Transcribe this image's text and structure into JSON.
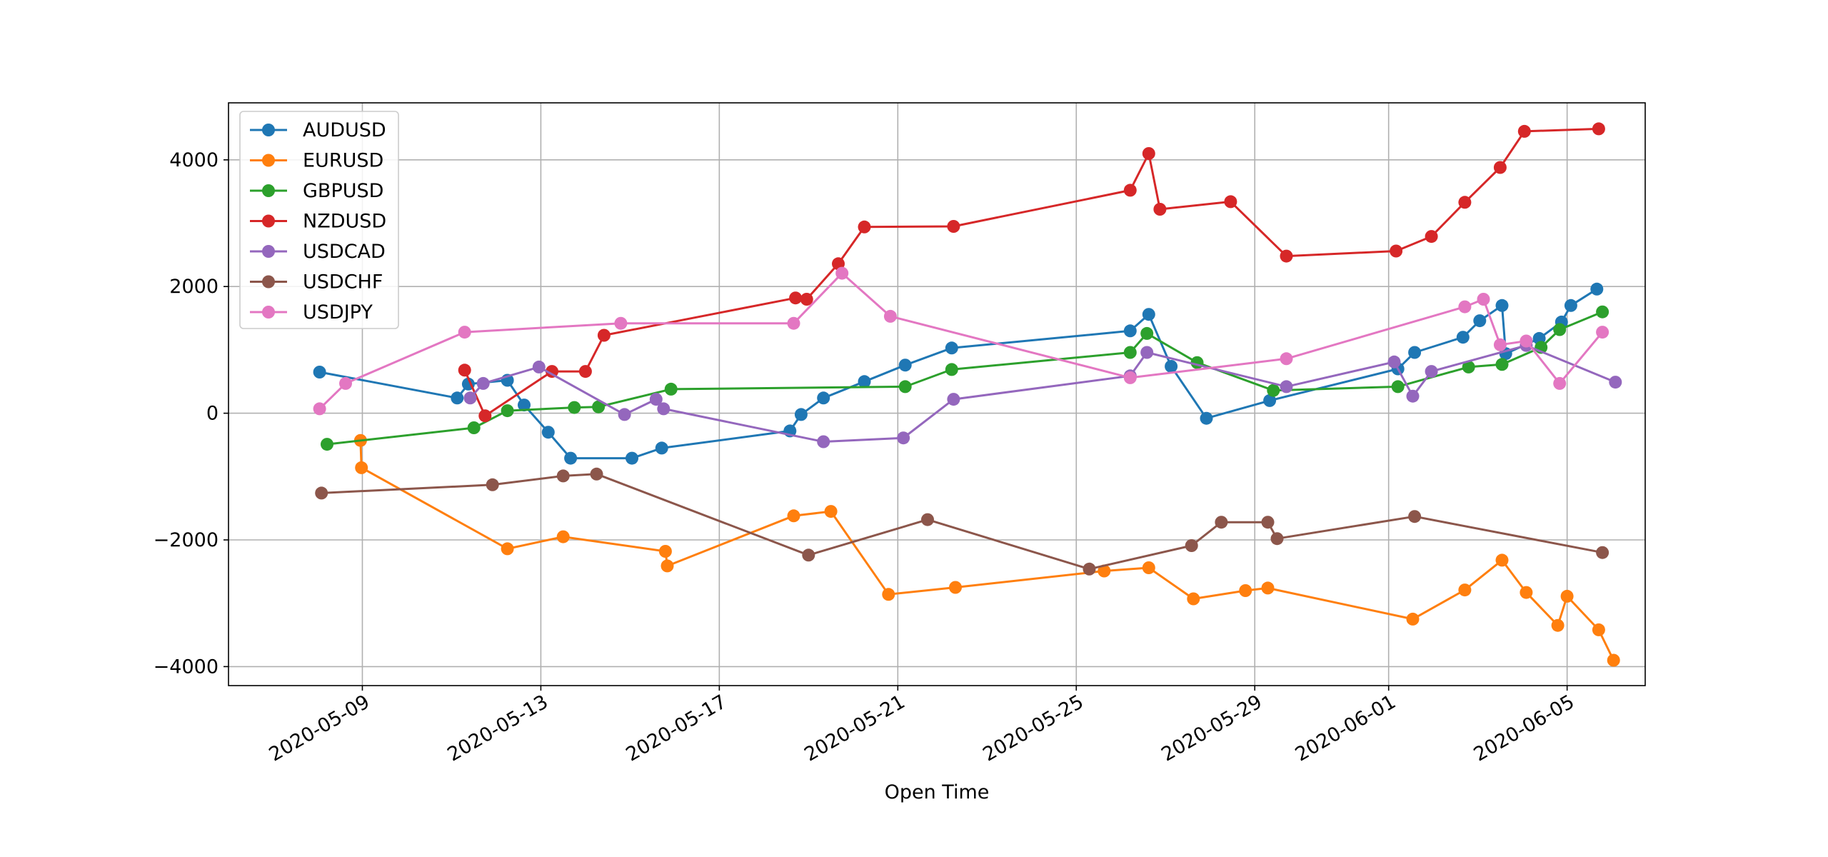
{
  "chart_data": {
    "type": "line",
    "title": "",
    "xlabel": "Open Time",
    "ylabel": "",
    "x_type": "datetime",
    "xlim": [
      "2020-05-06T00:00",
      "2020-06-06T18:00"
    ],
    "ylim": [
      -4300,
      4900
    ],
    "grid": true,
    "legend_position": "upper-left",
    "x_ticks": [
      {
        "date": "2020-05-09",
        "label": "2020-05-09"
      },
      {
        "date": "2020-05-13",
        "label": "2020-05-13"
      },
      {
        "date": "2020-05-17",
        "label": "2020-05-17"
      },
      {
        "date": "2020-05-21",
        "label": "2020-05-21"
      },
      {
        "date": "2020-05-25",
        "label": "2020-05-25"
      },
      {
        "date": "2020-05-29",
        "label": "2020-05-29"
      },
      {
        "date": "2020-06-01",
        "label": "2020-06-01"
      },
      {
        "date": "2020-06-05",
        "label": "2020-06-05"
      }
    ],
    "y_ticks": [
      {
        "value": 4000,
        "label": "4000"
      },
      {
        "value": 2000,
        "label": "2000"
      },
      {
        "value": 0,
        "label": "0"
      },
      {
        "value": -2000,
        "label": "−2000"
      },
      {
        "value": -4000,
        "label": "−4000"
      }
    ],
    "series": [
      {
        "name": "AUDUSD",
        "color": "#1f77b4",
        "points": [
          [
            "2020-05-08T01:00",
            650
          ],
          [
            "2020-05-11T03:00",
            240
          ],
          [
            "2020-05-11T09:00",
            460
          ],
          [
            "2020-05-12T06:00",
            520
          ],
          [
            "2020-05-12T15:00",
            130
          ],
          [
            "2020-05-13T04:00",
            -300
          ],
          [
            "2020-05-13T16:00",
            -710
          ],
          [
            "2020-05-15T01:00",
            -710
          ],
          [
            "2020-05-15T17:00",
            -550
          ],
          [
            "2020-05-18T14:00",
            -280
          ],
          [
            "2020-05-18T20:00",
            -20
          ],
          [
            "2020-05-19T08:00",
            240
          ],
          [
            "2020-05-20T06:00",
            500
          ],
          [
            "2020-05-21T04:00",
            760
          ],
          [
            "2020-05-22T05:00",
            1030
          ],
          [
            "2020-05-26T05:00",
            1300
          ],
          [
            "2020-05-26T15:00",
            1560
          ],
          [
            "2020-05-27T03:00",
            740
          ],
          [
            "2020-05-27T22:00",
            -80
          ],
          [
            "2020-05-29T08:00",
            200
          ],
          [
            "2020-06-01T05:00",
            700
          ],
          [
            "2020-06-01T14:00",
            960
          ],
          [
            "2020-06-02T16:00",
            1200
          ],
          [
            "2020-06-03T01:00",
            1460
          ],
          [
            "2020-06-03T13:00",
            1700
          ],
          [
            "2020-06-03T15:00",
            940
          ],
          [
            "2020-06-04T09:00",
            1180
          ],
          [
            "2020-06-04T21:00",
            1440
          ],
          [
            "2020-06-05T02:00",
            1700
          ],
          [
            "2020-06-05T16:00",
            1960
          ]
        ]
      },
      {
        "name": "EURUSD",
        "color": "#ff7f0e",
        "points": [
          [
            "2020-05-08T23:00",
            -430
          ],
          [
            "2020-05-08T23:30",
            -860
          ],
          [
            "2020-05-12T06:00",
            -2140
          ],
          [
            "2020-05-13T12:00",
            -1950
          ],
          [
            "2020-05-15T19:00",
            -2180
          ],
          [
            "2020-05-15T20:00",
            -2410
          ],
          [
            "2020-05-18T16:00",
            -1620
          ],
          [
            "2020-05-19T12:00",
            -1550
          ],
          [
            "2020-05-20T19:00",
            -2860
          ],
          [
            "2020-05-22T07:00",
            -2750
          ],
          [
            "2020-05-25T15:00",
            -2490
          ],
          [
            "2020-05-26T15:00",
            -2440
          ],
          [
            "2020-05-27T15:00",
            -2930
          ],
          [
            "2020-05-28T19:00",
            -2800
          ],
          [
            "2020-05-29T07:00",
            -2760
          ],
          [
            "2020-06-01T13:00",
            -3250
          ],
          [
            "2020-06-02T17:00",
            -2790
          ],
          [
            "2020-06-03T13:00",
            -2320
          ],
          [
            "2020-06-04T02:00",
            -2830
          ],
          [
            "2020-06-04T19:00",
            -3350
          ],
          [
            "2020-06-05T00:00",
            -2890
          ],
          [
            "2020-06-05T17:00",
            -3420
          ],
          [
            "2020-06-06T01:00",
            -3900
          ]
        ]
      },
      {
        "name": "GBPUSD",
        "color": "#2ca02c",
        "points": [
          [
            "2020-05-08T05:00",
            -490
          ],
          [
            "2020-05-11T12:00",
            -230
          ],
          [
            "2020-05-12T06:00",
            40
          ],
          [
            "2020-05-13T18:00",
            90
          ],
          [
            "2020-05-14T07:00",
            100
          ],
          [
            "2020-05-15T22:00",
            380
          ],
          [
            "2020-05-21T04:00",
            420
          ],
          [
            "2020-05-22T05:00",
            690
          ],
          [
            "2020-05-26T05:00",
            960
          ],
          [
            "2020-05-26T14:00",
            1260
          ],
          [
            "2020-05-27T17:00",
            800
          ],
          [
            "2020-05-29T10:00",
            360
          ],
          [
            "2020-06-01T05:00",
            420
          ],
          [
            "2020-06-02T19:00",
            730
          ],
          [
            "2020-06-03T13:00",
            770
          ],
          [
            "2020-06-04T10:00",
            1040
          ],
          [
            "2020-06-04T20:00",
            1320
          ],
          [
            "2020-06-05T19:00",
            1600
          ]
        ]
      },
      {
        "name": "NZDUSD",
        "color": "#d62728",
        "points": [
          [
            "2020-05-11T07:00",
            680
          ],
          [
            "2020-05-11T18:00",
            -40
          ],
          [
            "2020-05-13T06:00",
            660
          ],
          [
            "2020-05-14T00:00",
            660
          ],
          [
            "2020-05-14T10:00",
            1230
          ],
          [
            "2020-05-18T17:00",
            1820
          ],
          [
            "2020-05-18T23:00",
            1800
          ],
          [
            "2020-05-19T16:00",
            2360
          ],
          [
            "2020-05-20T06:00",
            2940
          ],
          [
            "2020-05-22T06:00",
            2950
          ],
          [
            "2020-05-26T05:00",
            3520
          ],
          [
            "2020-05-26T15:00",
            4100
          ],
          [
            "2020-05-26T21:00",
            3220
          ],
          [
            "2020-05-28T11:00",
            3340
          ],
          [
            "2020-05-29T17:00",
            2480
          ],
          [
            "2020-06-01T04:00",
            2560
          ],
          [
            "2020-06-01T23:00",
            2790
          ],
          [
            "2020-06-02T17:00",
            3330
          ],
          [
            "2020-06-03T12:00",
            3880
          ],
          [
            "2020-06-04T01:00",
            4450
          ],
          [
            "2020-06-05T17:00",
            4490
          ]
        ]
      },
      {
        "name": "USDCAD",
        "color": "#9467bd",
        "points": [
          [
            "2020-05-11T10:00",
            240
          ],
          [
            "2020-05-11T17:00",
            470
          ],
          [
            "2020-05-12T23:00",
            730
          ],
          [
            "2020-05-14T21:00",
            -20
          ],
          [
            "2020-05-15T14:00",
            220
          ],
          [
            "2020-05-15T18:00",
            70
          ],
          [
            "2020-05-19T08:00",
            -450
          ],
          [
            "2020-05-21T03:00",
            -390
          ],
          [
            "2020-05-22T06:00",
            220
          ],
          [
            "2020-05-26T05:00",
            590
          ],
          [
            "2020-05-26T14:00",
            960
          ],
          [
            "2020-05-29T17:00",
            420
          ],
          [
            "2020-06-01T03:00",
            810
          ],
          [
            "2020-06-01T13:00",
            270
          ],
          [
            "2020-06-01T23:00",
            660
          ],
          [
            "2020-06-04T02:00",
            1070
          ],
          [
            "2020-06-06T02:00",
            490
          ]
        ]
      },
      {
        "name": "USDCHF",
        "color": "#8c564b",
        "points": [
          [
            "2020-05-08T02:00",
            -1260
          ],
          [
            "2020-05-11T22:00",
            -1130
          ],
          [
            "2020-05-13T12:00",
            -990
          ],
          [
            "2020-05-14T06:00",
            -960
          ],
          [
            "2020-05-19T00:00",
            -2240
          ],
          [
            "2020-05-21T16:00",
            -1680
          ],
          [
            "2020-05-25T07:00",
            -2460
          ],
          [
            "2020-05-27T14:00",
            -2090
          ],
          [
            "2020-05-28T06:00",
            -1720
          ],
          [
            "2020-05-29T07:00",
            -1720
          ],
          [
            "2020-05-29T12:00",
            -1980
          ],
          [
            "2020-06-01T14:00",
            -1630
          ],
          [
            "2020-06-05T19:00",
            -2200
          ]
        ]
      },
      {
        "name": "USDJPY",
        "color": "#e377c2",
        "points": [
          [
            "2020-05-08T01:00",
            70
          ],
          [
            "2020-05-08T15:00",
            470
          ],
          [
            "2020-05-11T07:00",
            1280
          ],
          [
            "2020-05-14T19:00",
            1420
          ],
          [
            "2020-05-18T16:00",
            1420
          ],
          [
            "2020-05-19T18:00",
            2210
          ],
          [
            "2020-05-20T20:00",
            1530
          ],
          [
            "2020-05-26T05:00",
            560
          ],
          [
            "2020-05-29T17:00",
            860
          ],
          [
            "2020-06-02T17:00",
            1680
          ],
          [
            "2020-06-03T03:00",
            1800
          ],
          [
            "2020-06-03T12:00",
            1080
          ],
          [
            "2020-06-04T02:00",
            1140
          ],
          [
            "2020-06-04T20:00",
            470
          ],
          [
            "2020-06-05T19:00",
            1280
          ]
        ]
      }
    ]
  }
}
